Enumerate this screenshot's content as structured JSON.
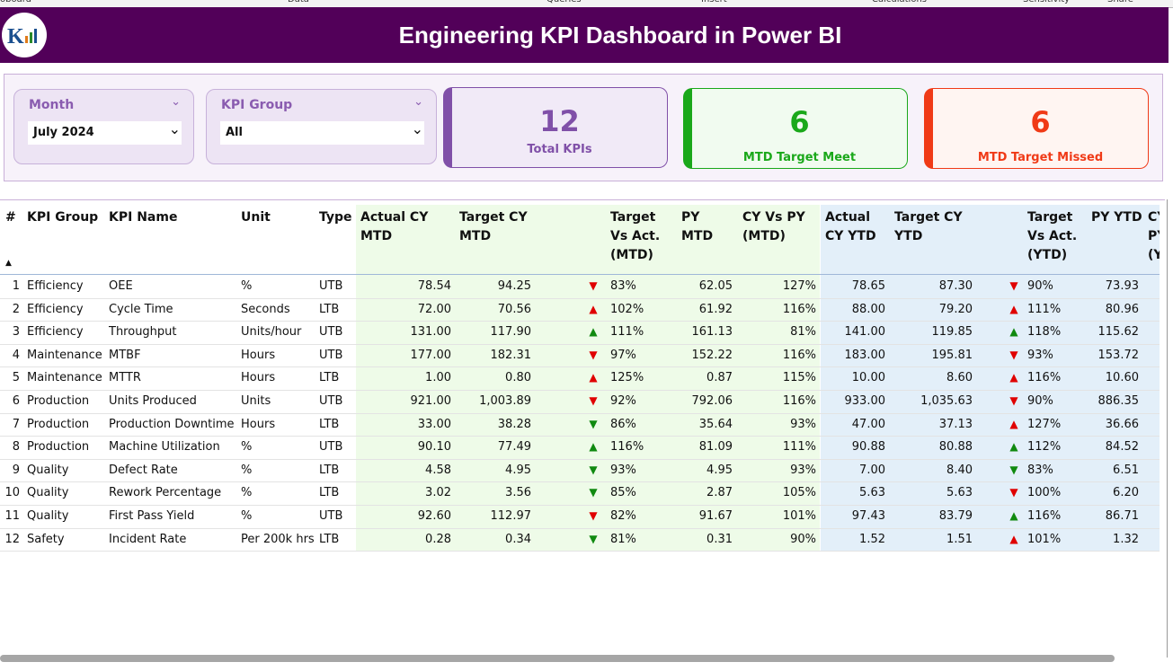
{
  "ribbon": [
    "oboard",
    "Data",
    "Queries",
    "Insert",
    "Calculations",
    "Sensitivity",
    "Share"
  ],
  "header": {
    "title": "Engineering KPI Dashboard in Power BI"
  },
  "slicers": [
    {
      "label": "Month",
      "value": "July 2024"
    },
    {
      "label": "KPI Group",
      "value": "All"
    }
  ],
  "cards": [
    {
      "value": "12",
      "label": "Total KPIs",
      "color": "#8050a8",
      "background": "#f1eaf7"
    },
    {
      "value": "6",
      "label": "MTD Target Meet",
      "color": "#1aa81a",
      "background": "#f1fbf0"
    },
    {
      "value": "6",
      "label": "MTD Target Missed",
      "color": "#f03a17",
      "background": "#fff5f2"
    }
  ],
  "table": {
    "headers": [
      "#",
      "KPI Group",
      "KPI Name",
      "Unit",
      "Type",
      "Actual CY MTD",
      "Target CY MTD",
      "Target Vs Act. (MTD)",
      "PY MTD",
      "CY Vs PY (MTD)",
      "Actual CY YTD",
      "Target CY YTD",
      "Target Vs Act. (YTD)",
      "PY YTD",
      "CY Vs PY (YTD)"
    ],
    "rows": [
      [
        "1",
        "Efficiency",
        "OEE",
        "%",
        "UTB",
        "78.54",
        "94.25",
        {
          "glyph": "▼",
          "color": "#e00000"
        },
        "83%",
        "62.05",
        "127%",
        "78.65",
        "87.30",
        {
          "glyph": "▼",
          "color": "#e00000"
        },
        "90%",
        "73.93"
      ],
      [
        "2",
        "Efficiency",
        "Cycle Time",
        "Seconds",
        "LTB",
        "72.00",
        "70.56",
        {
          "glyph": "▲",
          "color": "#e00000"
        },
        "102%",
        "61.92",
        "116%",
        "88.00",
        "79.20",
        {
          "glyph": "▲",
          "color": "#e00000"
        },
        "111%",
        "80.96"
      ],
      [
        "3",
        "Efficiency",
        "Throughput",
        "Units/hour",
        "UTB",
        "131.00",
        "117.90",
        {
          "glyph": "▲",
          "color": "#108a10"
        },
        "111%",
        "161.13",
        "81%",
        "141.00",
        "119.85",
        {
          "glyph": "▲",
          "color": "#108a10"
        },
        "118%",
        "115.62"
      ],
      [
        "4",
        "Maintenance",
        "MTBF",
        "Hours",
        "UTB",
        "177.00",
        "182.31",
        {
          "glyph": "▼",
          "color": "#e00000"
        },
        "97%",
        "152.22",
        "116%",
        "183.00",
        "195.81",
        {
          "glyph": "▼",
          "color": "#e00000"
        },
        "93%",
        "153.72"
      ],
      [
        "5",
        "Maintenance",
        "MTTR",
        "Hours",
        "LTB",
        "1.00",
        "0.80",
        {
          "glyph": "▲",
          "color": "#e00000"
        },
        "125%",
        "0.87",
        "115%",
        "10.00",
        "8.60",
        {
          "glyph": "▲",
          "color": "#e00000"
        },
        "116%",
        "10.60"
      ],
      [
        "6",
        "Production",
        "Units Produced",
        "Units",
        "UTB",
        "921.00",
        "1,003.89",
        {
          "glyph": "▼",
          "color": "#e00000"
        },
        "92%",
        "792.06",
        "116%",
        "933.00",
        "1,035.63",
        {
          "glyph": "▼",
          "color": "#e00000"
        },
        "90%",
        "886.35"
      ],
      [
        "7",
        "Production",
        "Production Downtime",
        "Hours",
        "LTB",
        "33.00",
        "38.28",
        {
          "glyph": "▼",
          "color": "#108a10"
        },
        "86%",
        "35.64",
        "93%",
        "47.00",
        "37.13",
        {
          "glyph": "▲",
          "color": "#e00000"
        },
        "127%",
        "36.66"
      ],
      [
        "8",
        "Production",
        "Machine Utilization",
        "%",
        "UTB",
        "90.10",
        "77.49",
        {
          "glyph": "▲",
          "color": "#108a10"
        },
        "116%",
        "81.09",
        "111%",
        "90.88",
        "80.88",
        {
          "glyph": "▲",
          "color": "#108a10"
        },
        "112%",
        "84.52"
      ],
      [
        "9",
        "Quality",
        "Defect Rate",
        "%",
        "LTB",
        "4.58",
        "4.95",
        {
          "glyph": "▼",
          "color": "#108a10"
        },
        "93%",
        "4.95",
        "93%",
        "7.00",
        "8.40",
        {
          "glyph": "▼",
          "color": "#108a10"
        },
        "83%",
        "6.51"
      ],
      [
        "10",
        "Quality",
        "Rework Percentage",
        "%",
        "LTB",
        "3.02",
        "3.56",
        {
          "glyph": "▼",
          "color": "#108a10"
        },
        "85%",
        "2.87",
        "105%",
        "5.63",
        "5.63",
        {
          "glyph": "▼",
          "color": "#e00000"
        },
        "100%",
        "6.20"
      ],
      [
        "11",
        "Quality",
        "First Pass Yield",
        "%",
        "UTB",
        "92.60",
        "112.97",
        {
          "glyph": "▼",
          "color": "#e00000"
        },
        "82%",
        "91.67",
        "101%",
        "97.43",
        "83.79",
        {
          "glyph": "▲",
          "color": "#108a10"
        },
        "116%",
        "86.71"
      ],
      [
        "12",
        "Safety",
        "Incident Rate",
        "Per 200k hrs",
        "LTB",
        "0.28",
        "0.34",
        {
          "glyph": "▼",
          "color": "#108a10"
        },
        "81%",
        "0.31",
        "90%",
        "1.52",
        "1.51",
        {
          "glyph": "▲",
          "color": "#e00000"
        },
        "101%",
        "1.32"
      ]
    ]
  }
}
